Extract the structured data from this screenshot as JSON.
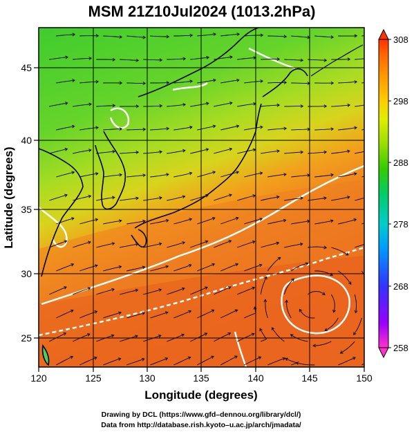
{
  "title": "MSM 21Z10Jul2024 (1013.2hPa)",
  "xlabel": "Longitude (degrees)",
  "ylabel": "Latitude  (degrees)",
  "lon_ticks": [
    "120",
    "125",
    "130",
    "135",
    "140",
    "145",
    "150"
  ],
  "lat_ticks": [
    "25",
    "30",
    "35",
    "40",
    "45"
  ],
  "colorbar": {
    "ticks": [
      "258",
      "268",
      "278",
      "288",
      "298",
      "308"
    ],
    "colors": [
      "#ff33cc",
      "#9900ff",
      "#3333ff",
      "#0099ff",
      "#00cccc",
      "#00cc66",
      "#33cc00",
      "#99dd00",
      "#ddee00",
      "#ffcc00",
      "#ff9900",
      "#ff6600",
      "#ff3300"
    ]
  },
  "credits": {
    "line1": "Drawing by DCL (https://www.gfd–dennou.org/library/dcl/)",
    "line2": "Data from http://database.rish.kyoto–u.ac.jp/arch/jmadata/"
  },
  "map_colors": {
    "north_green": "#44cc33",
    "mid_yellow": "#ccdd22",
    "south_orange": "#ee7722",
    "deep_orange": "#e85a1a",
    "contour": "#ffffff",
    "coast": "#000000"
  }
}
